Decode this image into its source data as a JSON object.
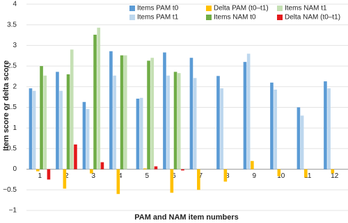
{
  "chart_data": {
    "type": "bar",
    "x_label": "PAM and NAM item numbers",
    "y_label": "Item score or delta score",
    "categories": [
      "1",
      "2",
      "3",
      "4",
      "5",
      "6",
      "7",
      "8",
      "9",
      "10",
      "11",
      "12"
    ],
    "series": [
      {
        "name": "Items PAM t0",
        "color": "#5b9bd5",
        "values": [
          1.96,
          2.36,
          1.63,
          2.86,
          1.71,
          2.83,
          2.7,
          2.26,
          2.6,
          2.1,
          1.5,
          2.13
        ]
      },
      {
        "name": "Items PAM t1",
        "color": "#bdd7ee",
        "values": [
          1.9,
          1.9,
          1.46,
          2.27,
          1.73,
          2.27,
          2.21,
          1.96,
          2.8,
          1.93,
          1.3,
          1.96
        ]
      },
      {
        "name": "Delta PAM (t0–t1)",
        "color": "#ffc000",
        "values": [
          -0.05,
          -0.47,
          -0.1,
          -0.6,
          0.02,
          -0.57,
          -0.5,
          -0.3,
          0.2,
          -0.17,
          -0.2,
          -0.1
        ]
      },
      {
        "name": "Items NAM t0",
        "color": "#70ad47",
        "values": [
          2.5,
          2.3,
          3.26,
          2.76,
          2.63,
          2.36,
          null,
          null,
          null,
          null,
          null,
          null
        ]
      },
      {
        "name": "Items NAM t1",
        "color": "#c5e0b4",
        "values": [
          2.27,
          2.9,
          3.43,
          2.76,
          2.7,
          2.33,
          null,
          null,
          null,
          null,
          null,
          null
        ]
      },
      {
        "name": "Delta NAM (t0–t1)",
        "color": "#e31a1c",
        "values": [
          -0.25,
          0.6,
          0.17,
          0,
          0.07,
          -0.03,
          null,
          null,
          null,
          null,
          null,
          null
        ]
      }
    ],
    "ylim": [
      -1,
      4
    ],
    "yticks": [
      {
        "value": -1,
        "label": "−1"
      },
      {
        "value": -0.5,
        "label": "−0.5"
      },
      0,
      0.5,
      1,
      1.5,
      2,
      2.5,
      3,
      3.5,
      4
    ],
    "grid": true,
    "legend": "top-right"
  }
}
